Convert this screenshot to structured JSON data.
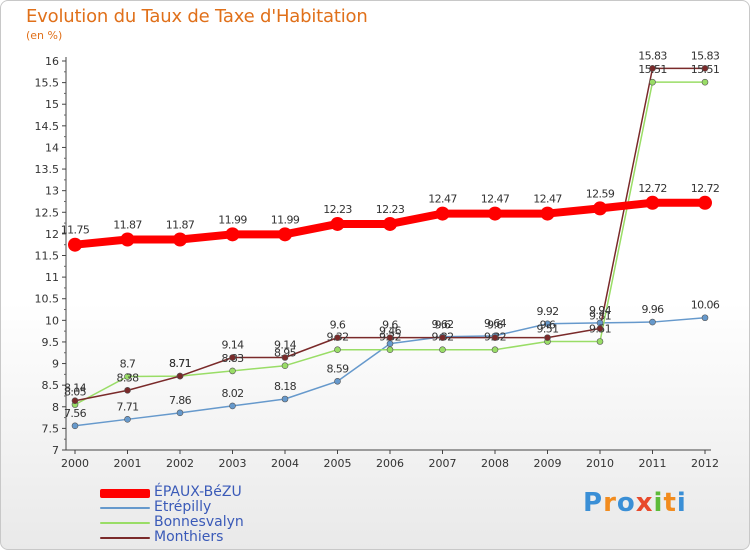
{
  "title": "Evolution du Taux de Taxe d'Habitation",
  "unit_label": "(en %)",
  "logo": {
    "text": "Proxiti",
    "letters": [
      {
        "ch": "P",
        "color": "#3a8fd6"
      },
      {
        "ch": "r",
        "color": "#f28c1e"
      },
      {
        "ch": "o",
        "color": "#3a8fd6"
      },
      {
        "ch": "x",
        "color": "#e84a2c"
      },
      {
        "ch": "i",
        "color": "#5dbb3a"
      },
      {
        "ch": "t",
        "color": "#f28c1e"
      },
      {
        "ch": "i",
        "color": "#3a8fd6"
      }
    ]
  },
  "chart_data": {
    "type": "line",
    "x": [
      "2000",
      "2001",
      "2002",
      "2003",
      "2004",
      "2005",
      "2006",
      "2007",
      "2008",
      "2009",
      "2010",
      "2011",
      "2012"
    ],
    "ylim": [
      7,
      16
    ],
    "yticks": [
      "7",
      "7.5",
      "8",
      "8.5",
      "9",
      "9.5",
      "10",
      "10.5",
      "11",
      "11.5",
      "12",
      "12.5",
      "13",
      "13.5",
      "14",
      "14.5",
      "15",
      "15.5",
      "16"
    ],
    "grid": false,
    "legend_position": "bottom-left",
    "series": [
      {
        "name": "ÉPAUX-BéZU",
        "color": "#ff0000",
        "width": 8,
        "marker": 7,
        "values": [
          11.75,
          11.87,
          11.87,
          11.99,
          11.99,
          12.23,
          12.23,
          12.47,
          12.47,
          12.47,
          12.59,
          12.72,
          12.72
        ],
        "labels": [
          "11.75",
          "11.87",
          "11.87",
          "11.99",
          "11.99",
          "12.23",
          "12.23",
          "12.47",
          "12.47",
          "12.47",
          "12.59",
          "12.72",
          "12.72"
        ]
      },
      {
        "name": "Etrépilly",
        "color": "#6699cc",
        "width": 1.5,
        "marker": 3,
        "values": [
          7.56,
          7.71,
          7.86,
          8.02,
          8.18,
          8.59,
          9.46,
          9.62,
          9.64,
          9.92,
          9.94,
          9.96,
          10.06
        ],
        "labels": [
          "7.56",
          "7.71",
          "7.86",
          "8.02",
          "8.18",
          "8.59",
          "9.46",
          "9.62",
          "9.64",
          "9.92",
          "9.94",
          "9.96",
          "10.06"
        ]
      },
      {
        "name": "Bonnesvalyn",
        "color": "#99dd66",
        "width": 1.5,
        "marker": 3,
        "values": [
          8.05,
          8.7,
          8.71,
          8.83,
          8.95,
          9.32,
          9.32,
          9.32,
          9.32,
          9.51,
          9.51,
          15.51,
          15.51
        ],
        "labels": [
          "8.05",
          "8.7",
          "8.71",
          "8.83",
          "8.95",
          "9.32",
          "9.32",
          "9.32",
          "9.32",
          "9.51",
          "9.51",
          "15.51",
          "15.51"
        ]
      },
      {
        "name": "Monthiers",
        "color": "#7a2a2a",
        "width": 1.5,
        "marker": 3,
        "values": [
          8.14,
          8.38,
          8.71,
          9.14,
          9.14,
          9.6,
          9.6,
          9.6,
          9.6,
          9.6,
          9.81,
          15.83,
          15.83
        ],
        "labels": [
          "8.14",
          "8.38",
          "8.71",
          "9.14",
          "9.14",
          "9.6",
          "9.6",
          "9.6",
          "9.6",
          "9.6",
          "9.81",
          "15.83",
          "15.83"
        ]
      }
    ]
  }
}
